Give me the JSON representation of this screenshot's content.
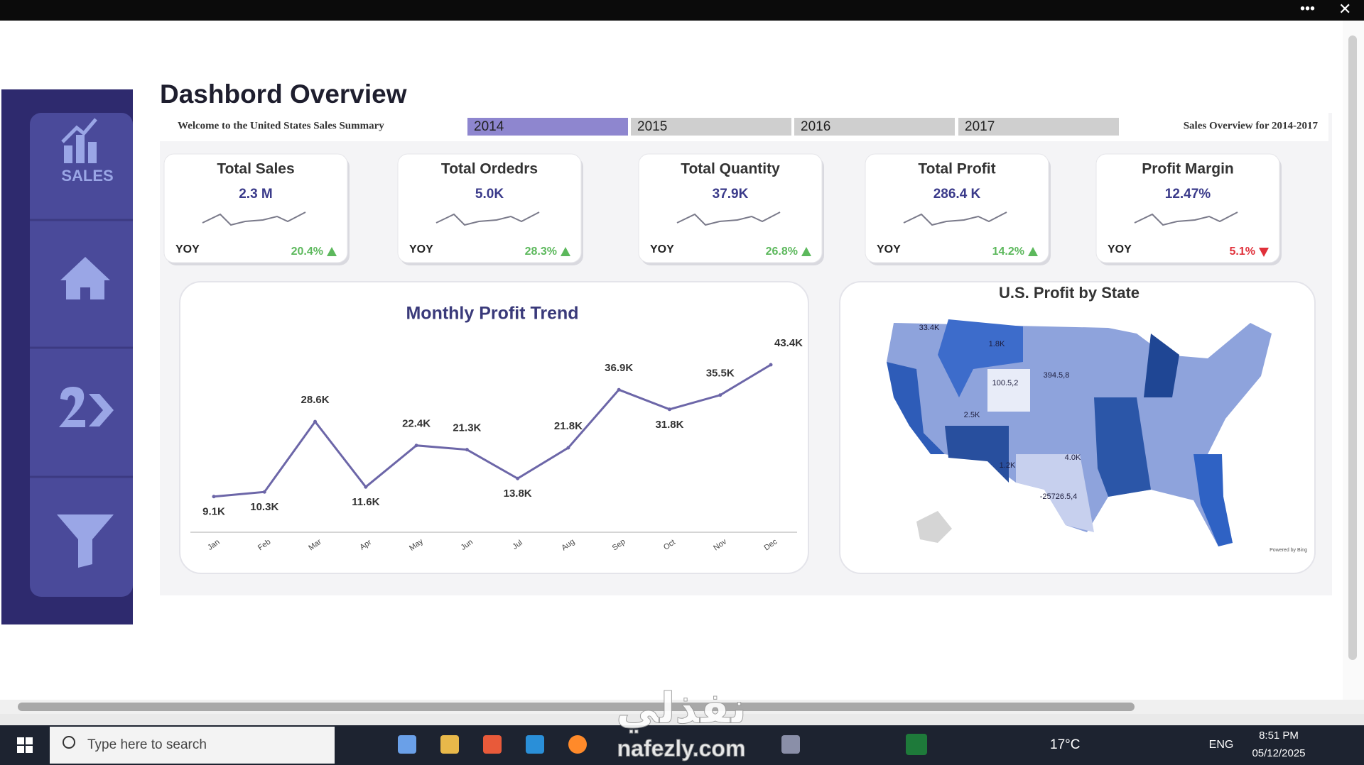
{
  "sidebar": {
    "logo": "SALES"
  },
  "header": {
    "title": "Dashbord Overview",
    "welcome": "Welcome to the United States Sales Summary",
    "overview": "Sales Overview for 2014-2017"
  },
  "year_tabs": {
    "years": [
      "2014",
      "2015",
      "2016",
      "2017"
    ],
    "selected": 0
  },
  "kpis": [
    {
      "title": "Total Sales",
      "value": "2.3 M",
      "yoy_label": "YOY",
      "change": "20.4%",
      "trend": "up"
    },
    {
      "title": "Total Ordedrs",
      "value": "5.0K",
      "yoy_label": "YOY",
      "change": "28.3%",
      "trend": "up"
    },
    {
      "title": "Total Quantity",
      "value": "37.9K",
      "yoy_label": "YOY",
      "change": "26.8%",
      "trend": "up"
    },
    {
      "title": "Total Profit",
      "value": "286.4 K",
      "yoy_label": "YOY",
      "change": "14.2%",
      "trend": "up"
    },
    {
      "title": "Profit Margin",
      "value": "12.47%",
      "yoy_label": "YOY",
      "change": "5.1%",
      "trend": "down"
    }
  ],
  "chart_data": {
    "type": "line",
    "title": "Monthly Profit Trend",
    "categories": [
      "Jan",
      "Feb",
      "Mar",
      "Apr",
      "May",
      "Jun",
      "Jul",
      "Aug",
      "Sep",
      "Oct",
      "Nov",
      "Dec"
    ],
    "values": [
      9.1,
      10.3,
      28.6,
      11.6,
      22.4,
      21.3,
      13.8,
      21.8,
      36.9,
      31.8,
      35.5,
      43.4
    ],
    "value_labels": [
      "9.1K",
      "10.3K",
      "28.6K",
      "11.6K",
      "22.4K",
      "21.3K",
      "13.8K",
      "21.8K",
      "36.9K",
      "31.8K",
      "35.5K",
      "43.4K"
    ],
    "color": "#6c66a8"
  },
  "map": {
    "title": "U.S. Profit by State",
    "labels": [
      "33.4K",
      "1.8K",
      "100.5,2",
      "394.5,8",
      "2.5K",
      "4.0K",
      "-25726.5,4",
      "1.2K"
    ]
  },
  "taskbar": {
    "search": "Type here to search",
    "weather": "17°C",
    "language": "ENG",
    "time": "8:51 PM",
    "date": "05/12/2025"
  },
  "watermark": {
    "arabic": "نفذلي",
    "url": "nafezly.com"
  }
}
